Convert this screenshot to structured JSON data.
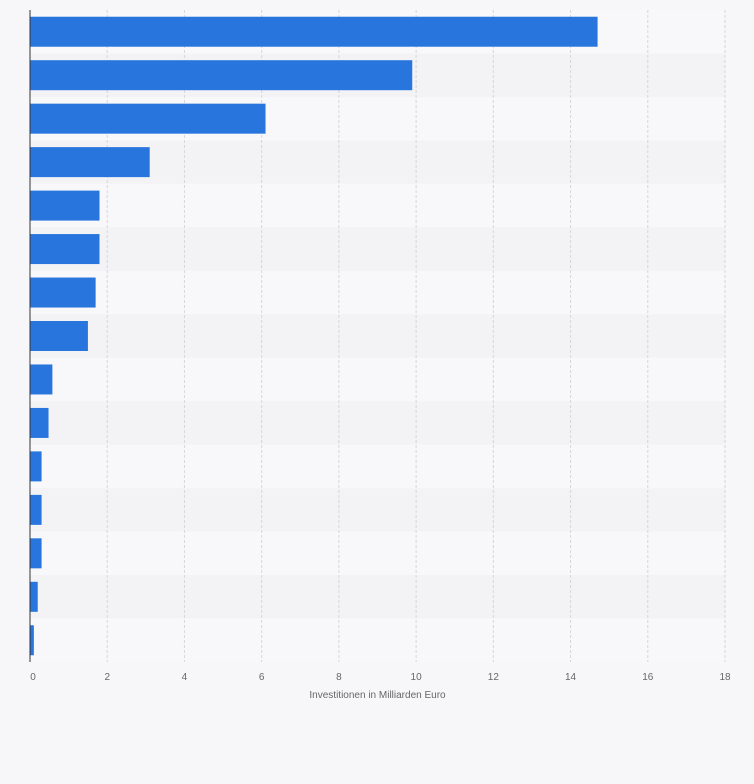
{
  "chart_data": {
    "type": "bar",
    "orientation": "horizontal",
    "title": "",
    "xlabel": "Investitionen in Milliarden Euro",
    "ylabel": "",
    "xlim": [
      0,
      18
    ],
    "xticks": [
      0,
      2,
      4,
      6,
      8,
      10,
      12,
      14,
      16,
      18
    ],
    "categories": [
      "",
      "",
      "",
      "",
      "",
      "",
      "",
      "",
      "",
      "",
      "",
      "",
      "",
      "",
      ""
    ],
    "values": [
      14.7,
      9.9,
      6.1,
      3.1,
      1.8,
      1.8,
      1.7,
      1.5,
      0.58,
      0.48,
      0.3,
      0.3,
      0.3,
      0.2,
      0.1
    ],
    "grid": true,
    "colors": {
      "bar": "#2876dd",
      "band_light": "#f8f8fa",
      "band_dark": "#f3f3f5",
      "grid": "#d6d6db",
      "axis": "#333333",
      "tick_text": "#666666"
    }
  }
}
